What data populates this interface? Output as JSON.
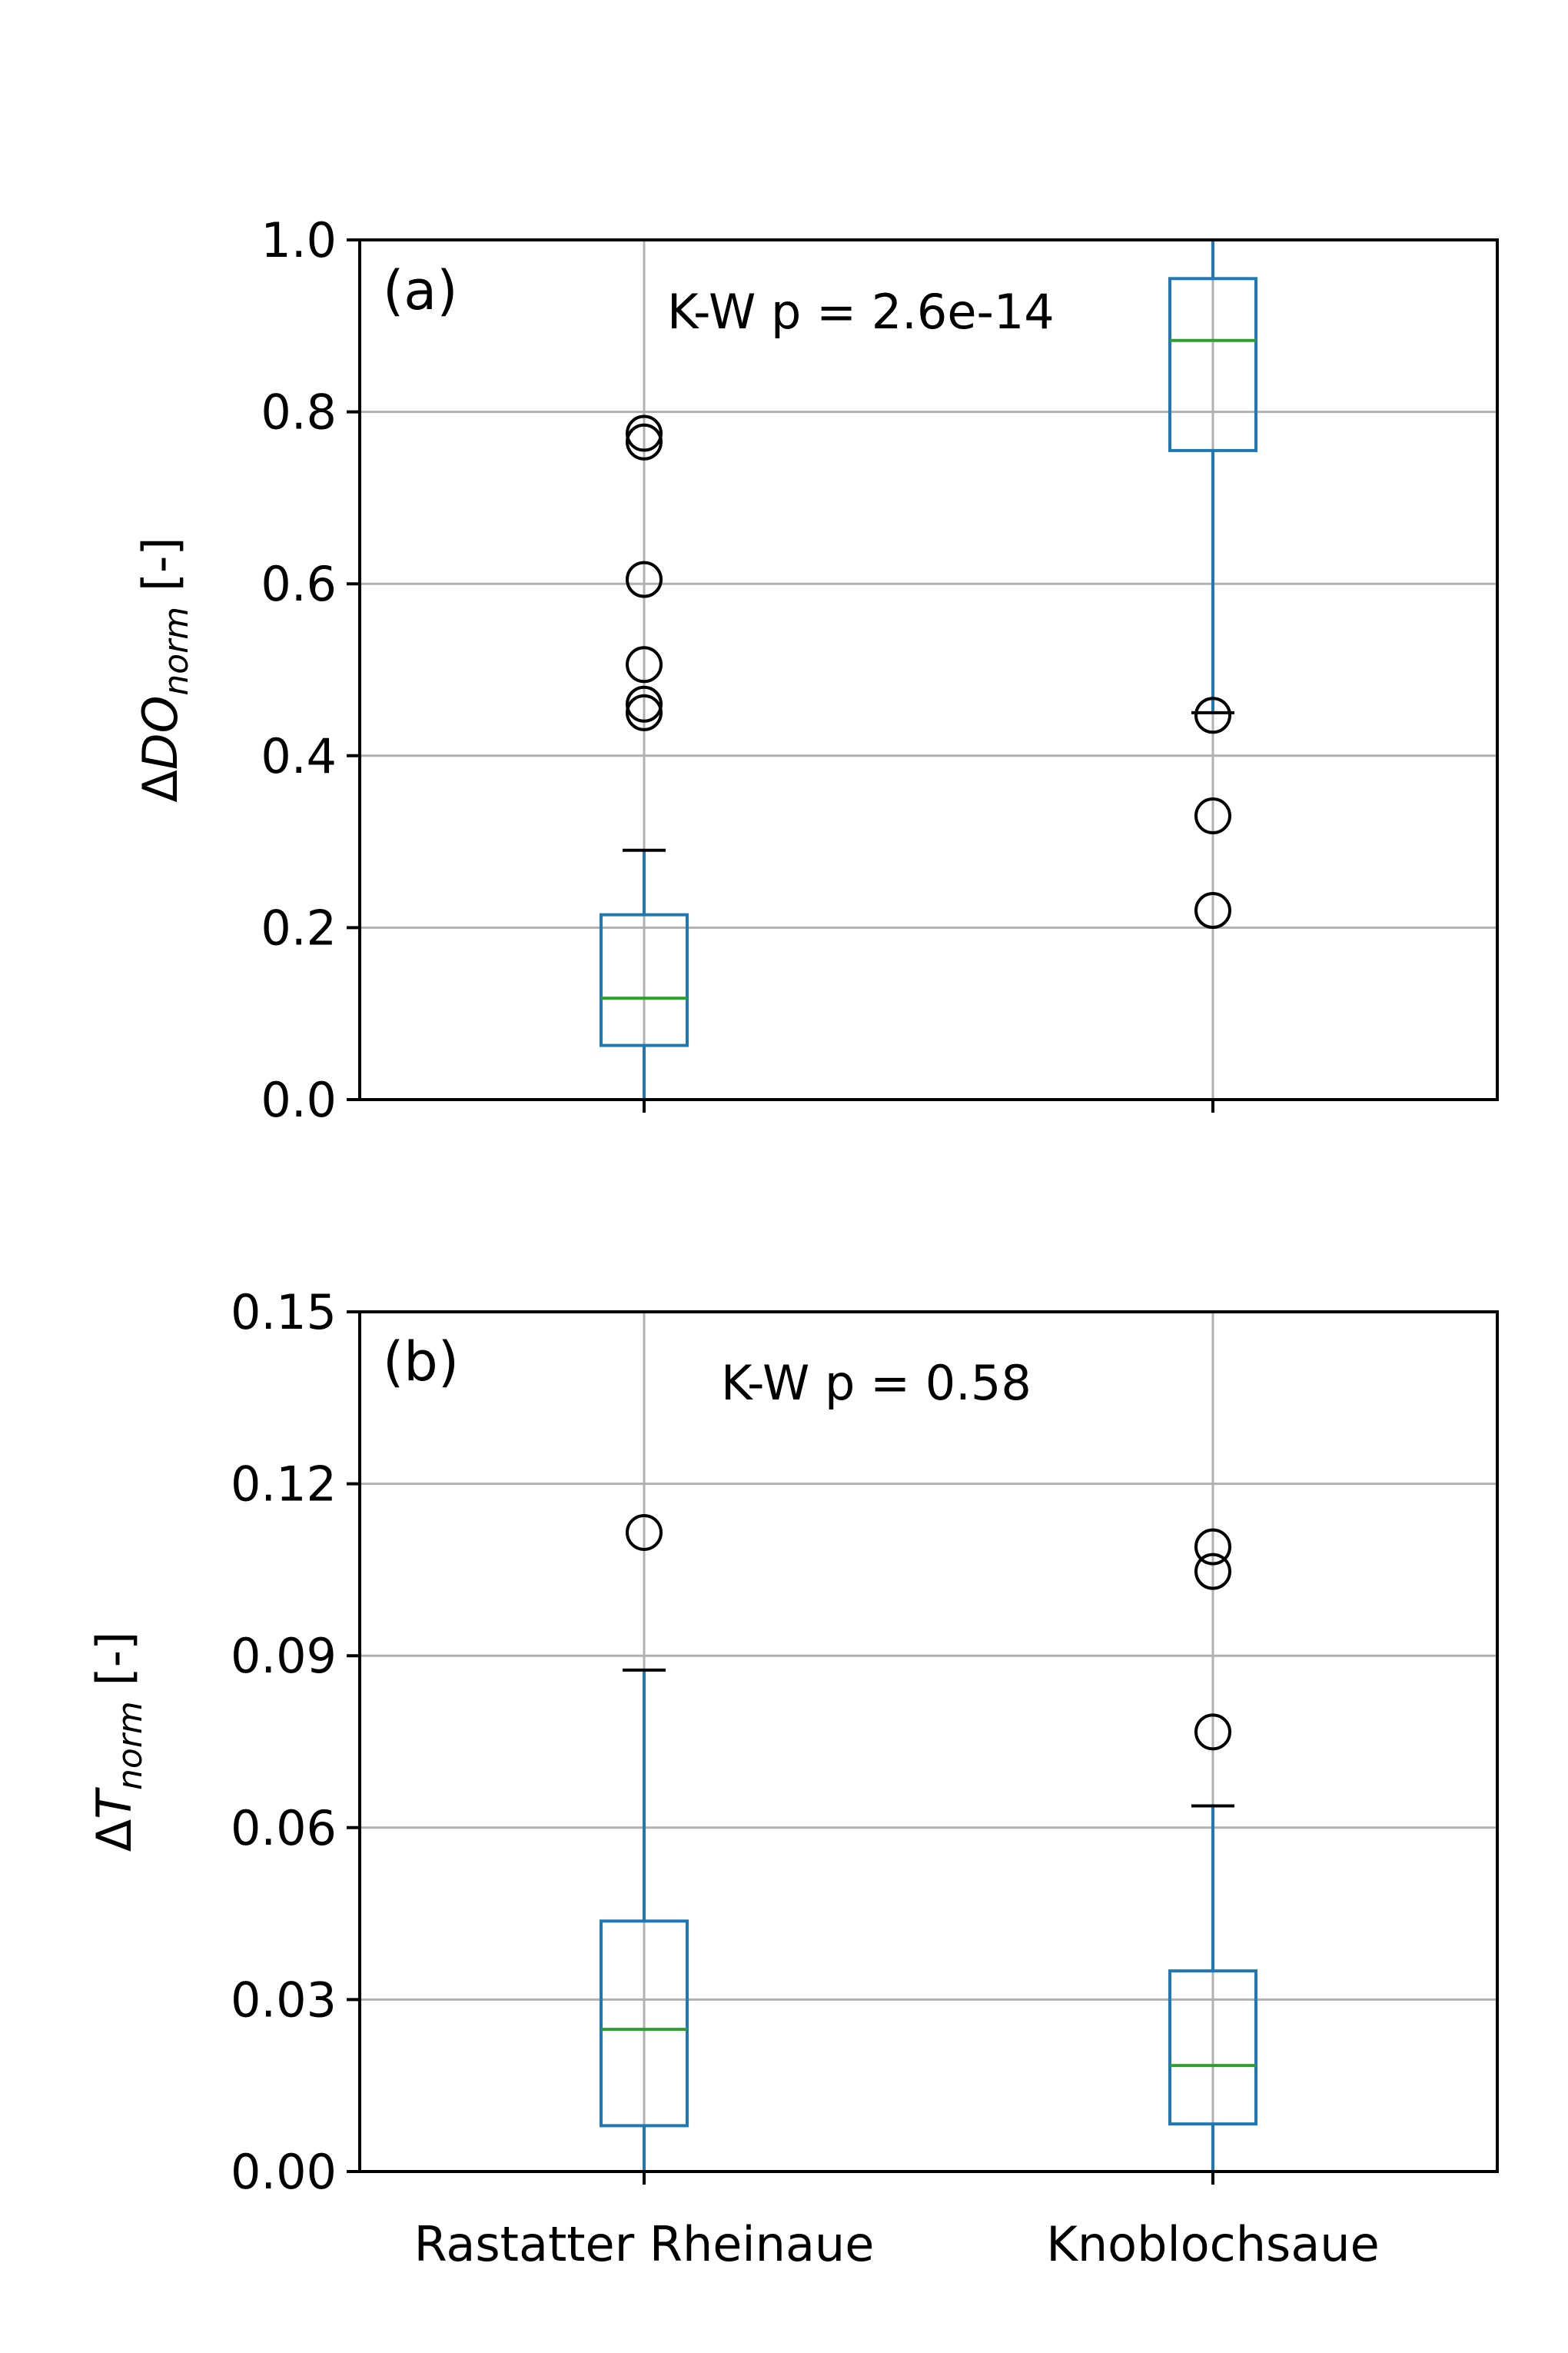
{
  "chart_data": [
    {
      "type": "box",
      "panel_label": "(a)",
      "annotation": "K-W p = 2.6e-14",
      "ylabel": {
        "prefix": "Δ",
        "symbol": "DO",
        "subscript": "norm",
        "suffix": " [-]"
      },
      "ylim": [
        0,
        1.0
      ],
      "yticks": [
        "0.0",
        "0.2",
        "0.4",
        "0.6",
        "0.8",
        "1.0"
      ],
      "ytick_values": [
        0,
        0.2,
        0.4,
        0.6,
        0.8,
        1.0
      ],
      "grid": true,
      "categories": [
        "Rastatter Rheinaue",
        "Knoblochsaue"
      ],
      "boxes": [
        {
          "name": "Rastatter Rheinaue",
          "whislo": 0.0,
          "q1": 0.063,
          "med": 0.118,
          "q3": 0.215,
          "whishi": 0.29,
          "fliers": [
            0.45,
            0.46,
            0.506,
            0.605,
            0.765,
            0.775
          ]
        },
        {
          "name": "Knoblochsaue",
          "whislo": 0.45,
          "q1": 0.755,
          "med": 0.883,
          "q3": 0.955,
          "whishi": 1.0,
          "fliers": [
            0.22,
            0.33,
            0.447
          ]
        }
      ]
    },
    {
      "type": "box",
      "panel_label": "(b)",
      "annotation": "K-W p = 0.58",
      "ylabel": {
        "prefix": "Δ",
        "symbol": "T",
        "subscript": "norm",
        "suffix": " [-]"
      },
      "ylim": [
        0,
        0.15
      ],
      "yticks": [
        "0.00",
        "0.03",
        "0.06",
        "0.09",
        "0.12",
        "0.15"
      ],
      "ytick_values": [
        0,
        0.03,
        0.06,
        0.09,
        0.12,
        0.15
      ],
      "grid": true,
      "categories": [
        "Rastatter Rheinaue",
        "Knoblochsaue"
      ],
      "boxes": [
        {
          "name": "Rastatter Rheinaue",
          "whislo": 0.0,
          "q1": 0.008,
          "med": 0.0248,
          "q3": 0.0437,
          "whishi": 0.0875,
          "fliers": [
            0.1115
          ]
        },
        {
          "name": "Knoblochsaue",
          "whislo": 0.0,
          "q1": 0.0083,
          "med": 0.0185,
          "q3": 0.035,
          "whishi": 0.0638,
          "fliers": [
            0.0767,
            0.1047,
            0.109
          ]
        }
      ]
    }
  ],
  "colors": {
    "box": "#1f77b4",
    "median": "#2ca02c",
    "grid": "#b0b0b0",
    "flier": "#000000",
    "axes": "#000000"
  }
}
